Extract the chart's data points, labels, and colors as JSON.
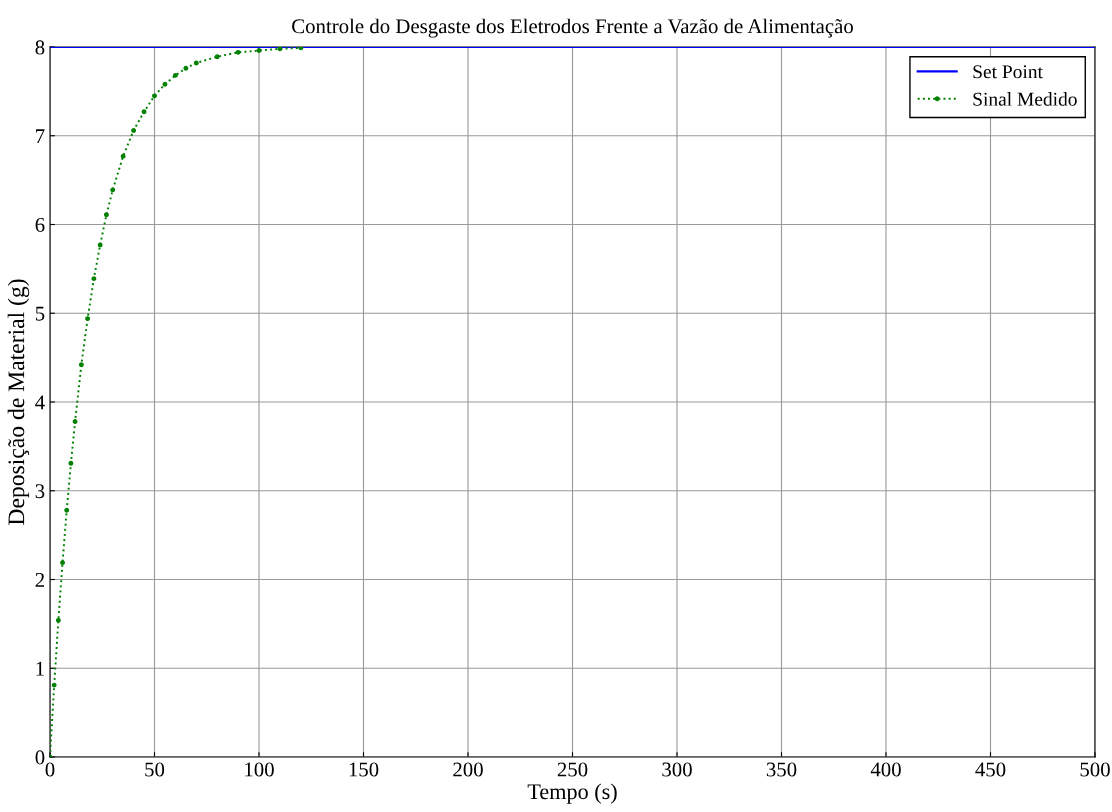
{
  "chart_data": {
    "type": "line",
    "title": "Controle do Desgaste dos Eletrodos Frente a Vazão de Alimentação",
    "xlabel": "Tempo (s)",
    "ylabel": "Deposição de Material (g)",
    "xlim": [
      0,
      500
    ],
    "xticks": [
      0,
      50,
      100,
      150,
      200,
      250,
      300,
      350,
      400,
      450,
      500
    ],
    "ylim": [
      0,
      8
    ],
    "yticks": [
      0,
      1,
      2,
      3,
      4,
      5,
      6,
      7,
      8
    ],
    "grid": true,
    "legend": "top right",
    "series": [
      {
        "name": "Set Point",
        "color": "#0000ff",
        "line_style": "solid",
        "marker": "none",
        "x": [
          0,
          500
        ],
        "values": [
          8,
          8
        ]
      },
      {
        "name": "Sinal Medido",
        "color": "#008000",
        "line_style": "dotted",
        "marker": "circle",
        "x": [
          0,
          2,
          4,
          6,
          8,
          10,
          12,
          15,
          18,
          21,
          24,
          27,
          30,
          35,
          40,
          45,
          50,
          55,
          60,
          65,
          70,
          80,
          90,
          100,
          110,
          120
        ],
        "values": [
          0,
          0.81,
          1.54,
          2.19,
          2.78,
          3.31,
          3.78,
          4.42,
          4.94,
          5.39,
          5.77,
          6.11,
          6.39,
          6.77,
          7.06,
          7.27,
          7.45,
          7.58,
          7.68,
          7.76,
          7.82,
          7.89,
          7.94,
          7.96,
          7.98,
          7.99
        ]
      }
    ]
  }
}
